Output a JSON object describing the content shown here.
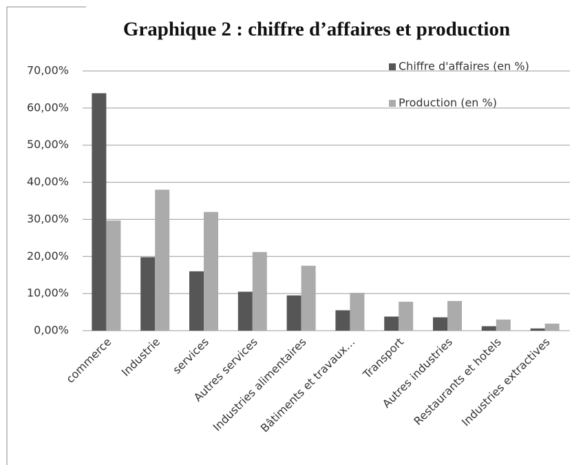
{
  "chart_data": {
    "type": "bar",
    "title": "Graphique 2 : chiffre d’affaires et production",
    "categories": [
      "commerce",
      "Industrie",
      "services",
      "Autres services",
      "Industries alimentaires",
      "Bâtiments et travaux…",
      "Transport",
      "Autres industries",
      "Restaurants et hotels",
      "Industries extractives"
    ],
    "series": [
      {
        "name": "Chiffre d'affaires (en %)",
        "color": "#565656",
        "values": [
          64,
          19.8,
          16,
          10.5,
          9.5,
          5.5,
          3.8,
          3.6,
          1.2,
          0.6
        ]
      },
      {
        "name": "Production (en %)",
        "color": "#ababab",
        "values": [
          29.7,
          38,
          32,
          21.2,
          17.5,
          10.2,
          7.8,
          8,
          3,
          1.9
        ]
      }
    ],
    "ylim": [
      0,
      70
    ],
    "yticks": [
      {
        "value": 0,
        "label": "0,00%"
      },
      {
        "value": 10,
        "label": "10,00%"
      },
      {
        "value": 20,
        "label": "20,00%"
      },
      {
        "value": 30,
        "label": "30,00%"
      },
      {
        "value": 40,
        "label": "40,00%"
      },
      {
        "value": 50,
        "label": "50,00%"
      },
      {
        "value": 60,
        "label": "60,00%"
      },
      {
        "value": 70,
        "label": "70,00%"
      }
    ],
    "grid": true,
    "legend": "top-right"
  }
}
